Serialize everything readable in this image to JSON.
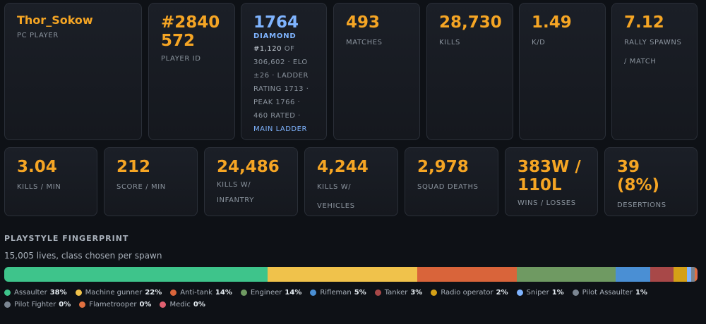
{
  "player": {
    "name": "Thor_Sokow",
    "platform": "PC PLAYER"
  },
  "player_id": {
    "value": "#2840\n572",
    "line1": "#2840",
    "line2": "572",
    "label": "PLAYER ID"
  },
  "elo": {
    "rating": "1764",
    "tier": "DIAMOND",
    "rank_prefix": "#1,120",
    "detail_a": " OF 306,602 · ELO ±26 · LADDER RATING 1713 · PEAK 1766 · 460 RATED · ",
    "ladder_link": "MAIN LADDER"
  },
  "stats_top": [
    {
      "value": "493",
      "label": "MATCHES"
    },
    {
      "value": "28,730",
      "label": "KILLS"
    },
    {
      "value": "1.49",
      "label": "K/D"
    },
    {
      "value": "7.12",
      "label": "RALLY SPAWNS / MATCH"
    }
  ],
  "stats_bottom": [
    {
      "value": "3.04",
      "label": "KILLS / MIN"
    },
    {
      "value": "212",
      "label": "SCORE / MIN"
    },
    {
      "value": "24,486",
      "label": "KILLS W/ INFANTRY"
    },
    {
      "value": "4,244",
      "label": "KILLS W/ VEHICLES"
    },
    {
      "value": "2,978",
      "label": "SQUAD DEATHS"
    },
    {
      "value": "383W / 110L",
      "label": "WINS / LOSSES"
    },
    {
      "value": "39 (8%)",
      "label": "DESERTIONS"
    }
  ],
  "playstyle": {
    "title": "PLAYSTYLE FINGERPRINT",
    "subtitle": "15,005 lives, class chosen per spawn",
    "classes": [
      {
        "name": "Assaulter",
        "pct": "38%",
        "share": 38.0,
        "color": "#3ec48b"
      },
      {
        "name": "Machine gunner",
        "pct": "22%",
        "share": 21.6,
        "color": "#f0c24b"
      },
      {
        "name": "Anti-tank",
        "pct": "14%",
        "share": 14.3,
        "color": "#d9643a"
      },
      {
        "name": "Engineer",
        "pct": "14%",
        "share": 14.3,
        "color": "#6f9a62"
      },
      {
        "name": "Rifleman",
        "pct": "5%",
        "share": 5.0,
        "color": "#4a8fd4"
      },
      {
        "name": "Tanker",
        "pct": "3%",
        "share": 3.3,
        "color": "#a84848"
      },
      {
        "name": "Radio operator",
        "pct": "2%",
        "share": 2.0,
        "color": "#d4a017"
      },
      {
        "name": "Sniper",
        "pct": "1%",
        "share": 0.6,
        "color": "#7fb4ff"
      },
      {
        "name": "Pilot Assaulter",
        "pct": "1%",
        "share": 0.5,
        "color": "#7a8591"
      },
      {
        "name": "Pilot Fighter",
        "pct": "0%",
        "share": 0.0,
        "color": "#7a8591"
      },
      {
        "name": "Flametrooper",
        "pct": "0%",
        "share": 0.3,
        "color": "#e07040"
      },
      {
        "name": "Medic",
        "pct": "0%",
        "share": 0.1,
        "color": "#e06070"
      }
    ]
  }
}
